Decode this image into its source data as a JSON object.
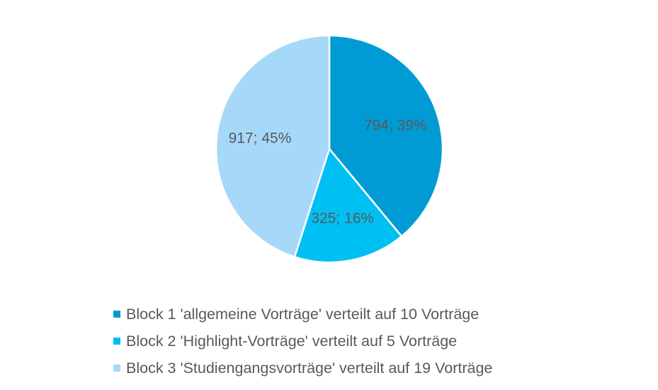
{
  "chart_data": {
    "type": "pie",
    "slices": [
      {
        "label": "Block 1 'allgemeine Vorträge' verteilt auf 10 Vorträge",
        "value": 794,
        "percent": 39,
        "data_label": "794; 39%",
        "color": "#009bd5"
      },
      {
        "label": "Block 2 'Highlight-Vorträge' verteilt auf 5 Vorträge",
        "value": 325,
        "percent": 16,
        "data_label": "325; 16%",
        "color": "#00bff3"
      },
      {
        "label": "Block 3 'Studiengangsvorträge' verteilt auf 19 Vorträge",
        "value": 917,
        "percent": 45,
        "data_label": "917; 45%",
        "color": "#a6d8fa"
      }
    ],
    "start_angle": "12 o'clock",
    "direction": "clockwise",
    "legend_position": "bottom"
  }
}
